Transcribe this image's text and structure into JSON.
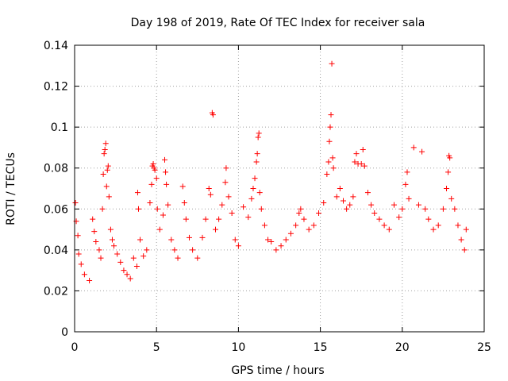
{
  "chart_data": {
    "type": "scatter",
    "title": "Day 198 of 2019, Rate Of TEC Index for receiver sala",
    "xlabel": "GPS time / hours",
    "ylabel": "ROTI / TECUs",
    "xlim": [
      0,
      25
    ],
    "ylim": [
      0,
      0.14
    ],
    "xticks": [
      0,
      5,
      10,
      15,
      20,
      25
    ],
    "yticks": [
      0,
      0.02,
      0.04,
      0.06,
      0.08,
      0.1,
      0.12,
      0.14
    ],
    "xtick_labels": [
      "0",
      "5",
      "10",
      "15",
      "20",
      "25"
    ],
    "ytick_labels": [
      "0",
      "0.02",
      "0.04",
      "0.06",
      "0.08",
      "0.1",
      "0.12",
      "0.14"
    ],
    "grid": true,
    "marker": "+",
    "series": [
      {
        "name": "ROTI",
        "color": "#ff0000",
        "points": [
          [
            0.05,
            0.063
          ],
          [
            0.1,
            0.054
          ],
          [
            0.2,
            0.047
          ],
          [
            0.25,
            0.038
          ],
          [
            0.4,
            0.033
          ],
          [
            0.6,
            0.028
          ],
          [
            0.9,
            0.025
          ],
          [
            1.1,
            0.055
          ],
          [
            1.2,
            0.049
          ],
          [
            1.3,
            0.044
          ],
          [
            1.5,
            0.04
          ],
          [
            1.6,
            0.036
          ],
          [
            1.7,
            0.06
          ],
          [
            1.75,
            0.077
          ],
          [
            1.8,
            0.087
          ],
          [
            1.85,
            0.089
          ],
          [
            1.9,
            0.092
          ],
          [
            1.95,
            0.071
          ],
          [
            2.0,
            0.079
          ],
          [
            2.05,
            0.081
          ],
          [
            2.1,
            0.066
          ],
          [
            2.2,
            0.05
          ],
          [
            2.3,
            0.045
          ],
          [
            2.4,
            0.042
          ],
          [
            2.6,
            0.038
          ],
          [
            2.8,
            0.034
          ],
          [
            3.0,
            0.03
          ],
          [
            3.2,
            0.028
          ],
          [
            3.4,
            0.026
          ],
          [
            3.6,
            0.036
          ],
          [
            3.8,
            0.032
          ],
          [
            3.85,
            0.068
          ],
          [
            3.9,
            0.06
          ],
          [
            4.0,
            0.045
          ],
          [
            4.2,
            0.037
          ],
          [
            4.4,
            0.04
          ],
          [
            4.6,
            0.063
          ],
          [
            4.7,
            0.072
          ],
          [
            4.75,
            0.081
          ],
          [
            4.8,
            0.082
          ],
          [
            4.85,
            0.08
          ],
          [
            4.9,
            0.079
          ],
          [
            5.0,
            0.075
          ],
          [
            5.05,
            0.06
          ],
          [
            5.2,
            0.05
          ],
          [
            5.4,
            0.057
          ],
          [
            5.5,
            0.084
          ],
          [
            5.55,
            0.078
          ],
          [
            5.6,
            0.072
          ],
          [
            5.7,
            0.062
          ],
          [
            5.9,
            0.045
          ],
          [
            6.1,
            0.04
          ],
          [
            6.3,
            0.036
          ],
          [
            6.6,
            0.071
          ],
          [
            6.7,
            0.063
          ],
          [
            6.8,
            0.055
          ],
          [
            7.0,
            0.046
          ],
          [
            7.2,
            0.04
          ],
          [
            7.5,
            0.036
          ],
          [
            7.8,
            0.046
          ],
          [
            8.0,
            0.055
          ],
          [
            8.2,
            0.07
          ],
          [
            8.3,
            0.067
          ],
          [
            8.4,
            0.107
          ],
          [
            8.45,
            0.106
          ],
          [
            8.6,
            0.05
          ],
          [
            8.8,
            0.055
          ],
          [
            9.0,
            0.062
          ],
          [
            9.2,
            0.073
          ],
          [
            9.25,
            0.08
          ],
          [
            9.4,
            0.066
          ],
          [
            9.6,
            0.058
          ],
          [
            9.8,
            0.045
          ],
          [
            10.0,
            0.042
          ],
          [
            10.3,
            0.061
          ],
          [
            10.6,
            0.056
          ],
          [
            10.8,
            0.065
          ],
          [
            10.9,
            0.07
          ],
          [
            11.0,
            0.075
          ],
          [
            11.1,
            0.083
          ],
          [
            11.15,
            0.087
          ],
          [
            11.2,
            0.095
          ],
          [
            11.25,
            0.097
          ],
          [
            11.3,
            0.068
          ],
          [
            11.4,
            0.06
          ],
          [
            11.6,
            0.052
          ],
          [
            11.8,
            0.045
          ],
          [
            12.0,
            0.044
          ],
          [
            12.3,
            0.04
          ],
          [
            12.6,
            0.042
          ],
          [
            12.9,
            0.045
          ],
          [
            13.2,
            0.048
          ],
          [
            13.5,
            0.052
          ],
          [
            13.7,
            0.058
          ],
          [
            13.8,
            0.06
          ],
          [
            14.0,
            0.055
          ],
          [
            14.3,
            0.05
          ],
          [
            14.6,
            0.052
          ],
          [
            14.9,
            0.058
          ],
          [
            15.2,
            0.063
          ],
          [
            15.4,
            0.077
          ],
          [
            15.5,
            0.083
          ],
          [
            15.55,
            0.093
          ],
          [
            15.6,
            0.1
          ],
          [
            15.65,
            0.106
          ],
          [
            15.7,
            0.131
          ],
          [
            15.75,
            0.085
          ],
          [
            15.8,
            0.08
          ],
          [
            16.0,
            0.066
          ],
          [
            16.2,
            0.07
          ],
          [
            16.4,
            0.064
          ],
          [
            16.6,
            0.06
          ],
          [
            16.8,
            0.062
          ],
          [
            17.0,
            0.066
          ],
          [
            17.1,
            0.083
          ],
          [
            17.2,
            0.087
          ],
          [
            17.3,
            0.082
          ],
          [
            17.5,
            0.082
          ],
          [
            17.6,
            0.089
          ],
          [
            17.7,
            0.081
          ],
          [
            17.9,
            0.068
          ],
          [
            18.1,
            0.062
          ],
          [
            18.3,
            0.058
          ],
          [
            18.6,
            0.055
          ],
          [
            18.9,
            0.052
          ],
          [
            19.2,
            0.05
          ],
          [
            19.5,
            0.062
          ],
          [
            19.8,
            0.056
          ],
          [
            20.0,
            0.06
          ],
          [
            20.2,
            0.072
          ],
          [
            20.3,
            0.078
          ],
          [
            20.4,
            0.065
          ],
          [
            20.7,
            0.09
          ],
          [
            21.0,
            0.062
          ],
          [
            21.2,
            0.088
          ],
          [
            21.4,
            0.06
          ],
          [
            21.6,
            0.055
          ],
          [
            21.9,
            0.05
          ],
          [
            22.2,
            0.052
          ],
          [
            22.5,
            0.06
          ],
          [
            22.7,
            0.07
          ],
          [
            22.8,
            0.078
          ],
          [
            22.85,
            0.086
          ],
          [
            22.9,
            0.085
          ],
          [
            23.0,
            0.065
          ],
          [
            23.2,
            0.06
          ],
          [
            23.4,
            0.052
          ],
          [
            23.6,
            0.045
          ],
          [
            23.8,
            0.04
          ],
          [
            23.9,
            0.05
          ]
        ]
      }
    ]
  }
}
